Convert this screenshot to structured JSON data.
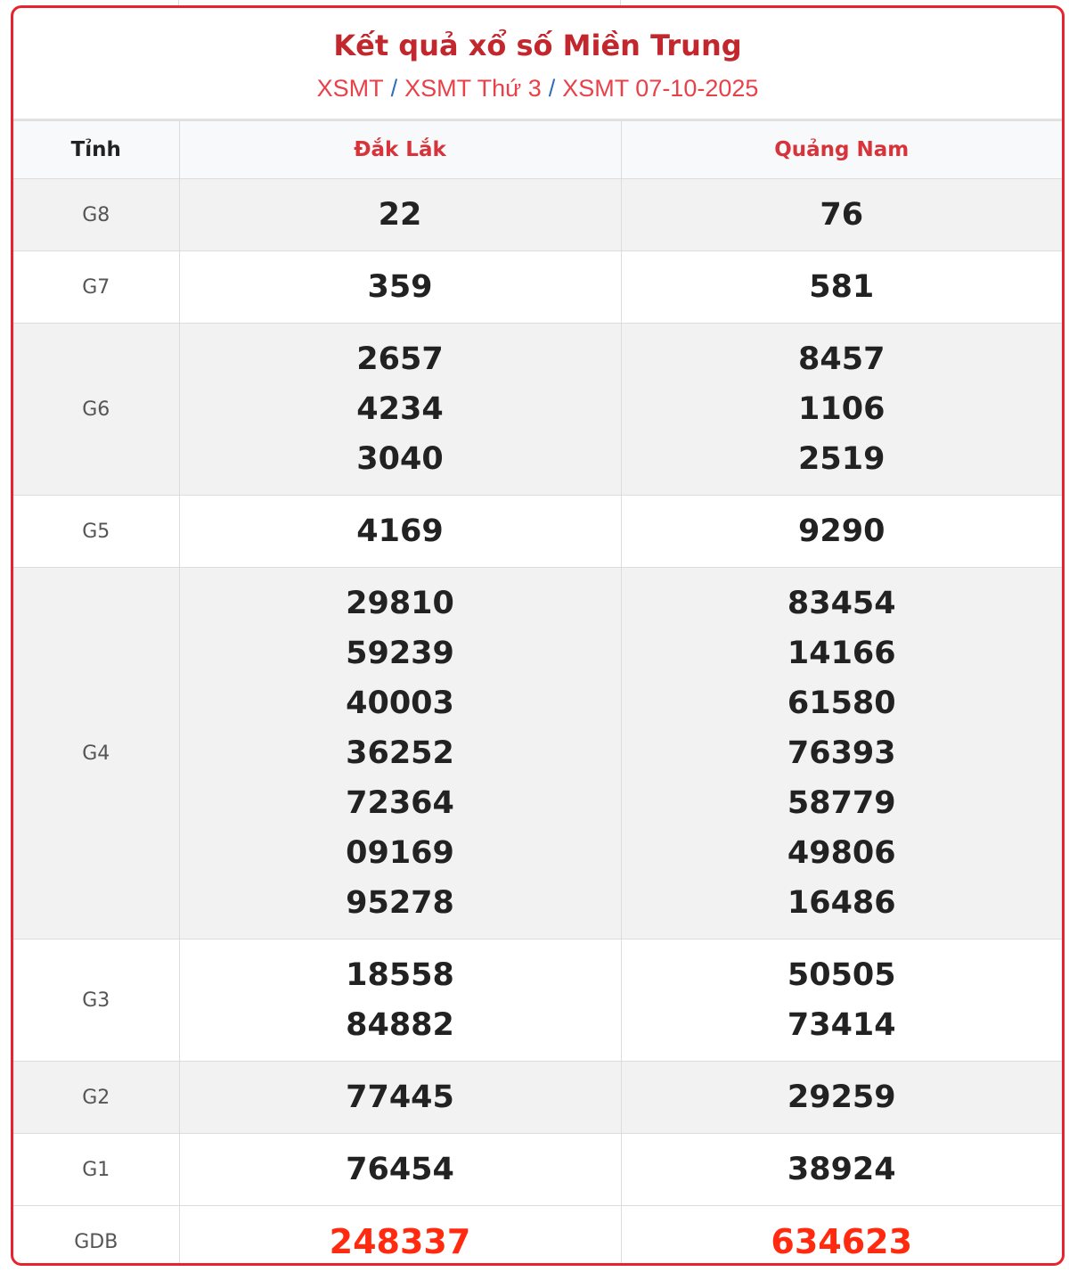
{
  "title": "Kết quả xổ số Miền Trung",
  "breadcrumb": [
    "XSMT",
    "XSMT Thứ 3",
    "XSMT 07-10-2025"
  ],
  "breadcrumb_separator": "/",
  "colors": {
    "accent": "#e8222e",
    "title": "#c1272d",
    "special_prize": "#ff2a0f"
  },
  "table": {
    "header": [
      "Tỉnh",
      "Đắk Lắk",
      "Quảng Nam"
    ],
    "rows": [
      {
        "label": "G8",
        "cols": [
          [
            "22"
          ],
          [
            "76"
          ]
        ]
      },
      {
        "label": "G7",
        "cols": [
          [
            "359"
          ],
          [
            "581"
          ]
        ]
      },
      {
        "label": "G6",
        "cols": [
          [
            "2657",
            "4234",
            "3040"
          ],
          [
            "8457",
            "1106",
            "2519"
          ]
        ]
      },
      {
        "label": "G5",
        "cols": [
          [
            "4169"
          ],
          [
            "9290"
          ]
        ]
      },
      {
        "label": "G4",
        "cols": [
          [
            "29810",
            "59239",
            "40003",
            "36252",
            "72364",
            "09169",
            "95278"
          ],
          [
            "83454",
            "14166",
            "61580",
            "76393",
            "58779",
            "49806",
            "16486"
          ]
        ]
      },
      {
        "label": "G3",
        "cols": [
          [
            "18558",
            "84882"
          ],
          [
            "50505",
            "73414"
          ]
        ]
      },
      {
        "label": "G2",
        "cols": [
          [
            "77445"
          ],
          [
            "29259"
          ]
        ]
      },
      {
        "label": "G1",
        "cols": [
          [
            "76454"
          ],
          [
            "38924"
          ]
        ]
      },
      {
        "label": "GDB",
        "cols": [
          [
            "248337"
          ],
          [
            "634623"
          ]
        ]
      }
    ]
  }
}
